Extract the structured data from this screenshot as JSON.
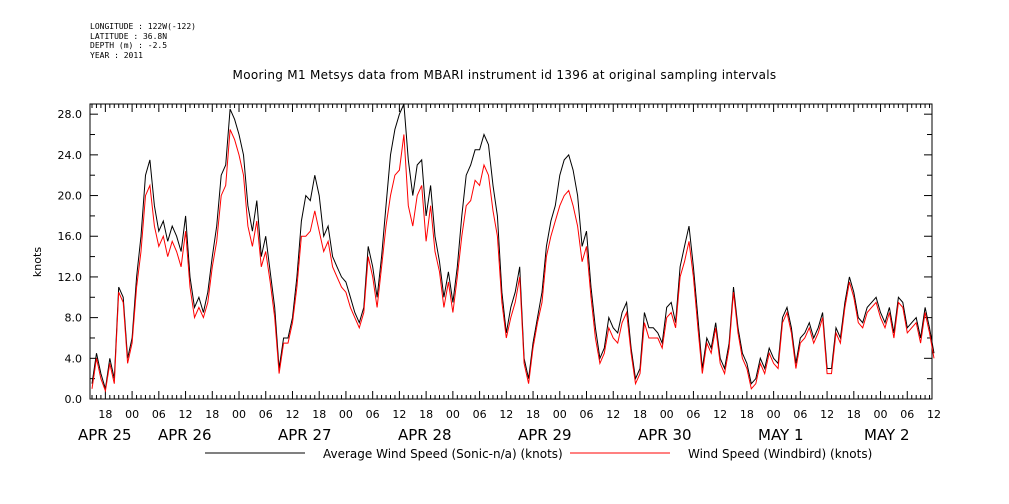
{
  "meta": {
    "longitude": "LONGITUDE : 122W(-122)",
    "latitude": "LATITUDE : 36.8N",
    "depth": "DEPTH (m) : -2.5",
    "year": "YEAR : 2011"
  },
  "chart_data": {
    "type": "line",
    "title": "Mooring M1 Metsys data from MBARI instrument id 1396 at original sampling intervals",
    "ylabel": "knots",
    "ylim": [
      0,
      29
    ],
    "yticks": [
      "0.0",
      "4.0",
      "8.0",
      "12.0",
      "16.0",
      "20.0",
      "24.0",
      "28.0"
    ],
    "xlim_hours": [
      0,
      189
    ],
    "hour_ticks": [
      "18",
      "00",
      "06",
      "12",
      "18",
      "00",
      "06",
      "12",
      "18",
      "00",
      "06",
      "12",
      "18",
      "00",
      "06",
      "12",
      "18",
      "00",
      "06",
      "12",
      "18",
      "00",
      "06",
      "12",
      "18",
      "00",
      "06",
      "12",
      "18",
      "00",
      "06",
      "12"
    ],
    "day_labels": [
      "APR 25",
      "APR 26",
      "APR 27",
      "APR 28",
      "APR 29",
      "APR 30",
      "MAY  1",
      "MAY  2"
    ],
    "series": [
      {
        "name": "Average Wind Speed (Sonic-n/a) (knots)",
        "color": "#000000",
        "x": [
          0,
          1,
          2,
          3,
          4,
          5,
          6,
          7,
          8,
          9,
          10,
          11,
          12,
          13,
          14,
          15,
          16,
          17,
          18,
          19,
          20,
          21,
          22,
          23,
          24,
          25,
          26,
          27,
          28,
          29,
          30,
          31,
          32,
          33,
          34,
          35,
          36,
          37,
          38,
          39,
          40,
          41,
          42,
          43,
          44,
          45,
          46,
          47,
          48,
          49,
          50,
          51,
          52,
          53,
          54,
          55,
          56,
          57,
          58,
          59,
          60,
          61,
          62,
          63,
          64,
          65,
          66,
          67,
          68,
          69,
          70,
          71,
          72,
          73,
          74,
          75,
          76,
          77,
          78,
          79,
          80,
          81,
          82,
          83,
          84,
          85,
          86,
          87,
          88,
          89,
          90,
          91,
          92,
          93,
          94,
          95,
          96,
          97,
          98,
          99,
          100,
          101,
          102,
          103,
          104,
          105,
          106,
          107,
          108,
          109,
          110,
          111,
          112,
          113,
          114,
          115,
          116,
          117,
          118,
          119,
          120,
          121,
          122,
          123,
          124,
          125,
          126,
          127,
          128,
          129,
          130,
          131,
          132,
          133,
          134,
          135,
          136,
          137,
          138,
          139,
          140,
          141,
          142,
          143,
          144,
          145,
          146,
          147,
          148,
          149,
          150,
          151,
          152,
          153,
          154,
          155,
          156,
          157,
          158,
          159,
          160,
          161,
          162,
          163,
          164,
          165,
          166,
          167,
          168,
          169,
          170,
          171,
          172,
          173,
          174,
          175,
          176,
          177,
          178,
          179,
          180,
          181,
          182,
          183,
          184,
          185,
          186,
          187,
          188,
          189
        ],
        "values": [
          1.5,
          4.5,
          2.5,
          1.0,
          4.0,
          2.0,
          11.0,
          10.0,
          4.0,
          6.0,
          12.0,
          16.0,
          22.0,
          23.5,
          19.0,
          16.5,
          17.5,
          15.5,
          17.0,
          16.0,
          14.5,
          18.0,
          12.0,
          9.0,
          10.0,
          8.5,
          10.5,
          14.0,
          17.0,
          22.0,
          23.0,
          28.5,
          27.5,
          26.0,
          24.0,
          19.0,
          16.5,
          19.5,
          14.0,
          16.0,
          12.5,
          9.0,
          3.0,
          6.0,
          6.0,
          8.0,
          12.0,
          17.5,
          20.0,
          19.5,
          22.0,
          20.0,
          16.0,
          17.0,
          14.0,
          13.0,
          12.0,
          11.5,
          10.0,
          8.5,
          7.5,
          9.0,
          15.0,
          13.0,
          10.0,
          14.0,
          19.0,
          24.0,
          26.5,
          28.0,
          29.0,
          23.5,
          20.0,
          23.0,
          23.5,
          18.0,
          21.0,
          16.0,
          13.5,
          10.0,
          12.5,
          9.5,
          13.0,
          18.0,
          22.0,
          23.0,
          24.5,
          24.5,
          26.0,
          25.0,
          21.0,
          18.0,
          10.5,
          6.5,
          9.0,
          10.5,
          13.0,
          4.0,
          2.0,
          5.5,
          8.0,
          10.5,
          15.0,
          17.5,
          19.0,
          22.0,
          23.5,
          24.0,
          22.5,
          20.0,
          15.0,
          16.5,
          11.0,
          7.0,
          4.0,
          5.0,
          8.0,
          7.0,
          6.5,
          8.5,
          9.5,
          5.0,
          2.0,
          3.0,
          8.5,
          7.0,
          7.0,
          6.5,
          5.5,
          9.0,
          9.5,
          7.5,
          13.0,
          15.0,
          17.0,
          13.0,
          8.0,
          3.0,
          6.0,
          5.0,
          7.5,
          4.0,
          3.0,
          5.5,
          11.0,
          7.0,
          4.5,
          3.5,
          1.5,
          2.0,
          4.0,
          3.0,
          5.0,
          4.0,
          3.5,
          8.0,
          9.0,
          7.0,
          3.5,
          6.0,
          6.5,
          7.5,
          6.0,
          7.0,
          8.5,
          3.0,
          3.0,
          7.0,
          6.0,
          9.5,
          12.0,
          10.5,
          8.0,
          7.5,
          9.0,
          9.5,
          10.0,
          8.5,
          7.5,
          9.0,
          6.5,
          10.0,
          9.5,
          7.0,
          7.5,
          8.0,
          6.0,
          9.0,
          7.0,
          4.5
        ]
      },
      {
        "name": "Wind Speed (Windbird) (knots)",
        "color": "#ff0000",
        "x": [
          0,
          1,
          2,
          3,
          4,
          5,
          6,
          7,
          8,
          9,
          10,
          11,
          12,
          13,
          14,
          15,
          16,
          17,
          18,
          19,
          20,
          21,
          22,
          23,
          24,
          25,
          26,
          27,
          28,
          29,
          30,
          31,
          32,
          33,
          34,
          35,
          36,
          37,
          38,
          39,
          40,
          41,
          42,
          43,
          44,
          45,
          46,
          47,
          48,
          49,
          50,
          51,
          52,
          53,
          54,
          55,
          56,
          57,
          58,
          59,
          60,
          61,
          62,
          63,
          64,
          65,
          66,
          67,
          68,
          69,
          70,
          71,
          72,
          73,
          74,
          75,
          76,
          77,
          78,
          79,
          80,
          81,
          82,
          83,
          84,
          85,
          86,
          87,
          88,
          89,
          90,
          91,
          92,
          93,
          94,
          95,
          96,
          97,
          98,
          99,
          100,
          101,
          102,
          103,
          104,
          105,
          106,
          107,
          108,
          109,
          110,
          111,
          112,
          113,
          114,
          115,
          116,
          117,
          118,
          119,
          120,
          121,
          122,
          123,
          124,
          125,
          126,
          127,
          128,
          129,
          130,
          131,
          132,
          133,
          134,
          135,
          136,
          137,
          138,
          139,
          140,
          141,
          142,
          143,
          144,
          145,
          146,
          147,
          148,
          149,
          150,
          151,
          152,
          153,
          154,
          155,
          156,
          157,
          158,
          159,
          160,
          161,
          162,
          163,
          164,
          165,
          166,
          167,
          168,
          169,
          170,
          171,
          172,
          173,
          174,
          175,
          176,
          177,
          178,
          179,
          180,
          181,
          182,
          183,
          184,
          185,
          186,
          187,
          188,
          189
        ],
        "values": [
          1.0,
          4.0,
          2.0,
          0.8,
          3.5,
          1.5,
          10.5,
          9.5,
          3.5,
          5.5,
          11.0,
          14.5,
          20.0,
          21.0,
          17.0,
          15.0,
          16.0,
          14.0,
          15.5,
          14.5,
          13.0,
          16.5,
          11.0,
          8.0,
          9.0,
          8.0,
          9.5,
          13.0,
          15.5,
          20.0,
          21.0,
          26.5,
          25.5,
          24.0,
          22.0,
          17.0,
          15.0,
          17.5,
          13.0,
          14.5,
          11.5,
          8.0,
          2.5,
          5.5,
          5.5,
          7.5,
          11.0,
          16.0,
          16.0,
          16.5,
          18.5,
          16.5,
          14.5,
          15.5,
          13.0,
          12.0,
          11.0,
          10.5,
          9.0,
          8.0,
          7.0,
          8.5,
          14.0,
          12.0,
          9.0,
          13.0,
          17.0,
          20.0,
          22.0,
          22.5,
          26.0,
          19.0,
          17.0,
          20.0,
          21.0,
          15.5,
          19.0,
          14.5,
          12.5,
          9.0,
          11.5,
          8.5,
          12.0,
          16.0,
          19.0,
          19.5,
          21.5,
          21.0,
          23.0,
          22.0,
          18.5,
          16.0,
          9.5,
          6.0,
          8.0,
          9.5,
          12.0,
          3.5,
          1.5,
          5.0,
          7.5,
          9.5,
          14.0,
          16.0,
          17.5,
          19.0,
          20.0,
          20.5,
          19.0,
          17.0,
          13.5,
          15.0,
          10.0,
          6.0,
          3.5,
          4.5,
          7.0,
          6.0,
          5.5,
          7.5,
          8.5,
          4.5,
          1.5,
          2.5,
          7.5,
          6.0,
          6.0,
          6.0,
          5.0,
          8.0,
          8.5,
          7.0,
          12.0,
          13.5,
          15.5,
          12.0,
          7.0,
          2.5,
          5.5,
          4.5,
          7.0,
          3.5,
          2.5,
          5.0,
          10.5,
          6.5,
          4.0,
          3.0,
          1.0,
          1.5,
          3.5,
          2.5,
          4.5,
          3.5,
          3.0,
          7.5,
          8.5,
          6.5,
          3.0,
          5.5,
          6.0,
          7.0,
          5.5,
          6.5,
          8.0,
          2.5,
          2.5,
          6.5,
          5.5,
          9.0,
          11.5,
          10.0,
          7.5,
          7.0,
          8.5,
          9.0,
          9.5,
          8.0,
          7.0,
          8.5,
          6.0,
          9.5,
          9.0,
          6.5,
          7.0,
          7.5,
          5.5,
          8.5,
          6.5,
          4.0
        ]
      }
    ],
    "legend": {
      "position": "bottom"
    },
    "grid": false
  }
}
